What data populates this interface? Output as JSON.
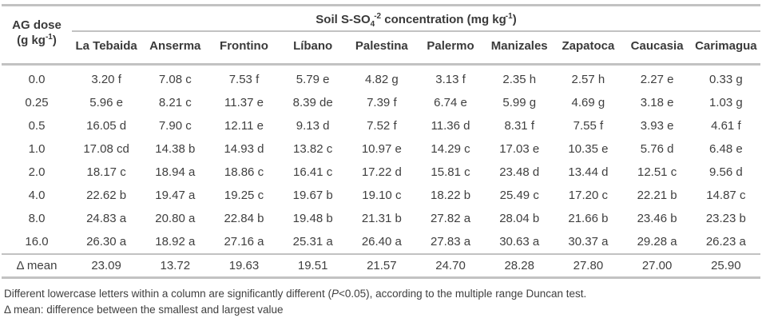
{
  "header": {
    "dose_line1": "AG dose",
    "dose_unit_pre": "(g kg",
    "dose_unit_sup": "-1",
    "dose_unit_post": ")",
    "conc_pre": "Soil S-SO",
    "conc_sub": "4",
    "conc_sup": "-2",
    "conc_mid": " concentration (mg kg",
    "conc_sup2": "-1",
    "conc_post": ")"
  },
  "columns": [
    "La Tebaida",
    "Anserma",
    "Frontino",
    "Líbano",
    "Palestina",
    "Palermo",
    "Manizales",
    "Zapatoca",
    "Caucasia",
    "Carimagua"
  ],
  "rows": [
    {
      "dose": "0.0",
      "values": [
        "3.20 f",
        "7.08 c",
        "7.53 f",
        "5.79 e",
        "4.82 g",
        "3.13 f",
        "2.35 h",
        "2.57 h",
        "2.27 e",
        "0.33 g"
      ]
    },
    {
      "dose": "0.25",
      "values": [
        "5.96 e",
        "8.21 c",
        "11.37 e",
        "8.39 de",
        "7.39 f",
        "6.74 e",
        "5.99 g",
        "4.69 g",
        "3.18 e",
        "1.03 g"
      ]
    },
    {
      "dose": "0.5",
      "values": [
        "16.05 d",
        "7.90 c",
        "12.11 e",
        "9.13 d",
        "7.52 f",
        "11.36 d",
        "8.31 f",
        "7.55 f",
        "3.93 e",
        "4.61 f"
      ]
    },
    {
      "dose": "1.0",
      "values": [
        "17.08 cd",
        "14.38 b",
        "14.93 d",
        "13.82 c",
        "10.97 e",
        "14.29 c",
        "17.03 e",
        "10.35 e",
        "5.76 d",
        "6.48 e"
      ]
    },
    {
      "dose": "2.0",
      "values": [
        "18.17 c",
        "18.94 a",
        "18.86 c",
        "16.41 c",
        "17.22 d",
        "15.81 c",
        "23.48 d",
        "13.44 d",
        "12.51 c",
        "9.56 d"
      ]
    },
    {
      "dose": "4.0",
      "values": [
        "22.62 b",
        "19.47 a",
        "19.25 c",
        "19.67 b",
        "19.10 c",
        "18.22 b",
        "25.49 c",
        "17.20 c",
        "22.21 b",
        "14.87 c"
      ]
    },
    {
      "dose": "8.0",
      "values": [
        "24.83 a",
        "20.80 a",
        "22.84 b",
        "19.48 b",
        "21.31 b",
        "27.82 a",
        "28.04 b",
        "21.66 b",
        "23.46 b",
        "23.23 b"
      ]
    },
    {
      "dose": "16.0",
      "values": [
        "26.30 a",
        "18.92 a",
        "27.16 a",
        "25.31 a",
        "26.40 a",
        "27.83 a",
        "30.63 a",
        "30.37 a",
        "29.28 a",
        "26.23 a"
      ]
    }
  ],
  "delta_row": {
    "label": "Δ mean",
    "values": [
      "23.09",
      "13.72",
      "19.63",
      "19.51",
      "21.57",
      "24.70",
      "28.28",
      "27.80",
      "27.00",
      "25.90"
    ]
  },
  "footnotes": {
    "line1_pre": "Different lowercase letters within a column are significantly different (",
    "line1_italic": "P",
    "line1_post": "<0.05), according to the multiple range Duncan test.",
    "line2": "Δ mean: difference between the smallest and largest value"
  },
  "colors": {
    "border": "#c2c2c2",
    "text": "#3f3f3f"
  }
}
